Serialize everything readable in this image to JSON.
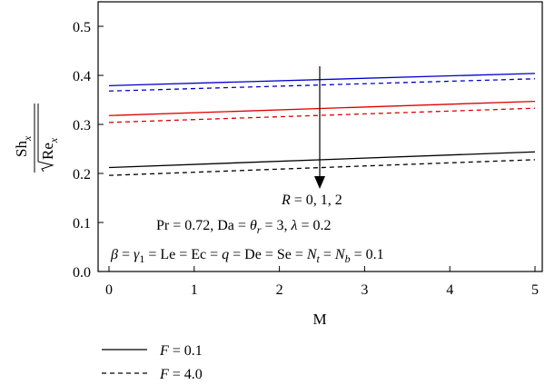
{
  "chart_data": {
    "type": "line",
    "xlabel": "M",
    "ylabel": {
      "numerator": "Sh",
      "numerator_sub": "x",
      "denominator": "Re",
      "denominator_sub": "x"
    },
    "xlim": [
      0,
      5
    ],
    "ylim": [
      0.0,
      0.55
    ],
    "x_ticks": [
      0,
      1,
      2,
      3,
      4,
      5
    ],
    "y_ticks": [
      0.0,
      0.1,
      0.2,
      0.3,
      0.4,
      0.5
    ],
    "y_tick_labels": [
      "0.0",
      "0.1",
      "0.2",
      "0.3",
      "0.4",
      "0.5"
    ],
    "grid": false,
    "legend_position": "bottom-left",
    "legend": [
      {
        "label": "F = 0.1",
        "dash": "solid"
      },
      {
        "label": "F = 4.0",
        "dash": "dashed"
      }
    ],
    "annotations": {
      "arrow_label": "R = 0, 1, 2",
      "params_line1": "Pr = 0.72, Da = θ_r = 3, λ = 0.2",
      "params_line2": "β = γ_1 = Le = Ec = q = De = Se = N_t = N_b = 0.1"
    },
    "series": [
      {
        "color": "#0000cc",
        "dash": "solid",
        "x": [
          0,
          5
        ],
        "y": [
          0.379,
          0.404
        ]
      },
      {
        "color": "#0000cc",
        "dash": "dashed",
        "x": [
          0,
          5
        ],
        "y": [
          0.368,
          0.393
        ]
      },
      {
        "color": "#dd0000",
        "dash": "solid",
        "x": [
          0,
          5
        ],
        "y": [
          0.318,
          0.347
        ]
      },
      {
        "color": "#dd0000",
        "dash": "dashed",
        "x": [
          0,
          5
        ],
        "y": [
          0.304,
          0.333
        ]
      },
      {
        "color": "#000000",
        "dash": "solid",
        "x": [
          0,
          5
        ],
        "y": [
          0.212,
          0.244
        ]
      },
      {
        "color": "#000000",
        "dash": "dashed",
        "x": [
          0,
          5
        ],
        "y": [
          0.196,
          0.228
        ]
      }
    ]
  }
}
